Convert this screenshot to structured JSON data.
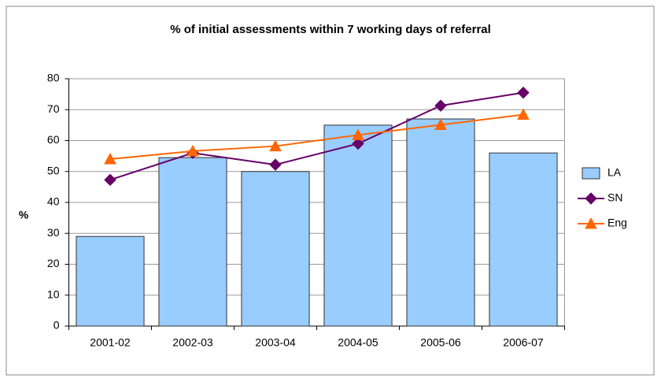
{
  "chart_data": {
    "type": "bar_line",
    "title": "% of initial assessments within 7 working days of referral",
    "y_label": "%",
    "categories": [
      "2001-02",
      "2002-03",
      "2003-04",
      "2004-05",
      "2005-06",
      "2006-07"
    ],
    "series": [
      {
        "name": "LA",
        "type": "bar",
        "color": "#99ccff",
        "values": [
          29,
          54.5,
          50,
          65,
          67,
          56
        ]
      },
      {
        "name": "SN",
        "type": "line",
        "marker": "diamond",
        "color": "#660066",
        "values": [
          47.3,
          56,
          52.2,
          59,
          71.3,
          75.5
        ]
      },
      {
        "name": "Eng",
        "type": "line",
        "marker": "triangle",
        "color": "#ff6600",
        "values": [
          54,
          56.6,
          58.2,
          61.8,
          65.1,
          68.4
        ]
      }
    ],
    "ylim": [
      0,
      80
    ],
    "yticks": [
      0,
      10,
      20,
      30,
      40,
      50,
      60,
      70,
      80
    ],
    "grid": true,
    "legend": "right"
  }
}
